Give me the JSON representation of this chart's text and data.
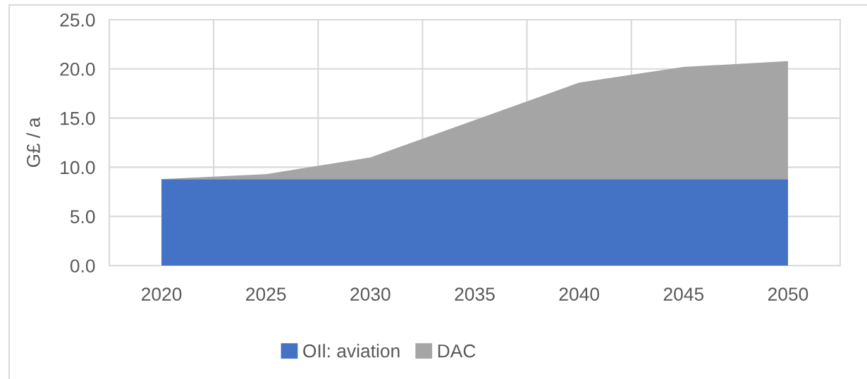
{
  "chart_data": {
    "type": "area",
    "ylabel": "G£ / a",
    "categories": [
      "2020",
      "2025",
      "2030",
      "2035",
      "2040",
      "2045",
      "2050"
    ],
    "series": [
      {
        "name": "OIl: aviation",
        "color": "#4472c4",
        "values": [
          8.8,
          8.8,
          8.8,
          8.8,
          8.8,
          8.8,
          8.8
        ]
      },
      {
        "name": "DAC",
        "color": "#a5a5a5",
        "values": [
          0.0,
          0.5,
          2.2,
          6.0,
          9.8,
          11.4,
          12.0
        ]
      }
    ],
    "stacked": true,
    "ylim": [
      0,
      25
    ],
    "yticks": [
      {
        "value": 0,
        "label": "0.0"
      },
      {
        "value": 5,
        "label": "5.0"
      },
      {
        "value": 10,
        "label": "10.0"
      },
      {
        "value": 15,
        "label": "15.0"
      },
      {
        "value": 20,
        "label": "20.0"
      },
      {
        "value": 25,
        "label": "25.0"
      }
    ],
    "grid": true,
    "legend": "bottom"
  }
}
